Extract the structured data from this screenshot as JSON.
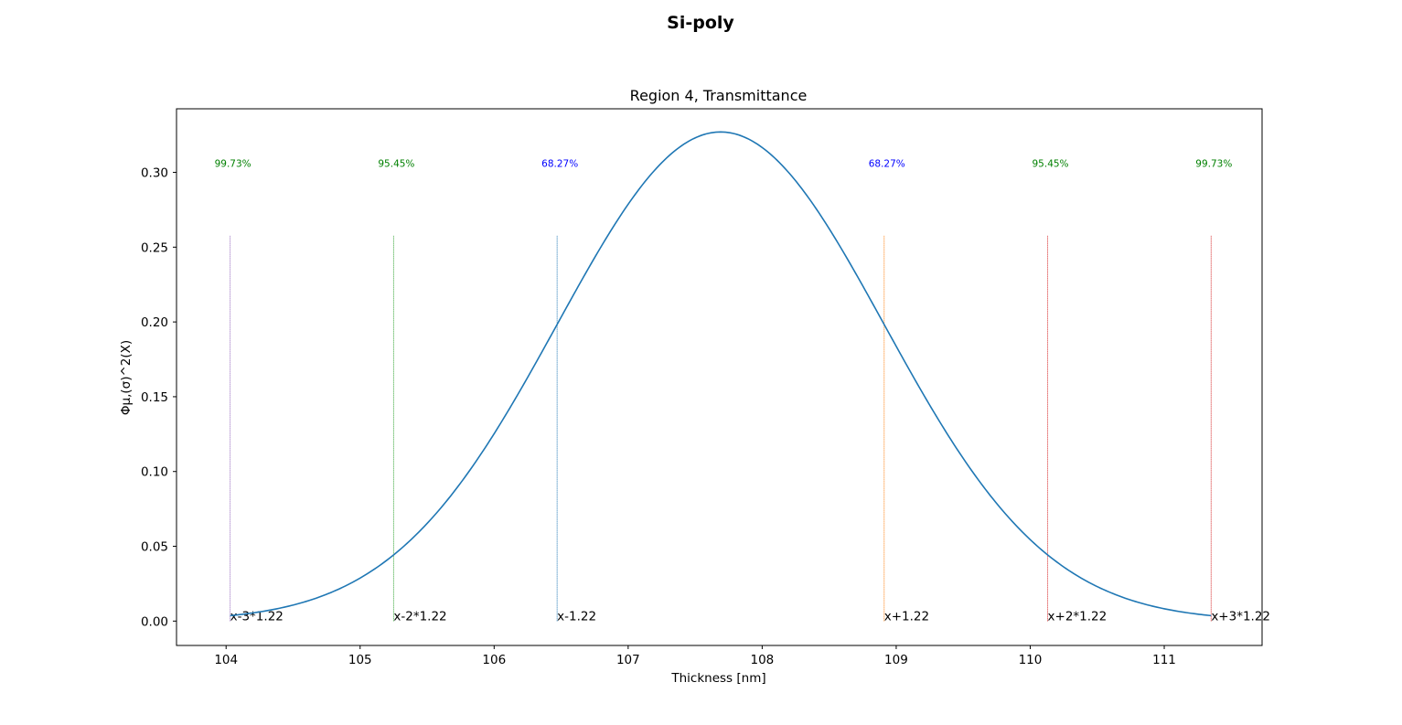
{
  "chart_data": {
    "type": "line",
    "suptitle": "Si-poly",
    "title": "Region 4, Transmittance",
    "xlabel": "Thickness [nm]",
    "ylabel": "Φμ,(σ)^2(X)",
    "xlim": [
      103.63,
      111.73
    ],
    "ylim": [
      -0.0163,
      0.3425
    ],
    "xticks": [
      104,
      105,
      106,
      107,
      108,
      109,
      110,
      111
    ],
    "yticks": [
      "0.00",
      "0.05",
      "0.10",
      "0.15",
      "0.20",
      "0.25",
      "0.30"
    ],
    "grid": false,
    "series": [
      {
        "mean": 107.69,
        "sigma": 1.22,
        "x_range": [
          104.03,
          111.35
        ],
        "color": "#1f77b4"
      }
    ],
    "markers": [
      {
        "x": 104.03,
        "label": "x-3*1.22",
        "pct": "99.73%",
        "line_color": "#9467bd",
        "pct_color": "#008000"
      },
      {
        "x": 105.25,
        "label": "x-2*1.22",
        "pct": "95.45%",
        "line_color": "#2ca02c",
        "pct_color": "#008000"
      },
      {
        "x": 106.47,
        "label": "x-1.22",
        "pct": "68.27%",
        "line_color": "#1f77b4",
        "pct_color": "#0000ff"
      },
      {
        "x": 108.91,
        "label": "x+1.22",
        "pct": "68.27%",
        "line_color": "#ff7f0e",
        "pct_color": "#0000ff"
      },
      {
        "x": 110.13,
        "label": "x+2*1.22",
        "pct": "95.45%",
        "line_color": "#d62728",
        "pct_color": "#008000"
      },
      {
        "x": 111.35,
        "label": "x+3*1.22",
        "pct": "99.73%",
        "line_color": "#d62728",
        "pct_color": "#008000"
      }
    ],
    "marker_line_top": 0.258,
    "pct_label_y": 0.306
  }
}
